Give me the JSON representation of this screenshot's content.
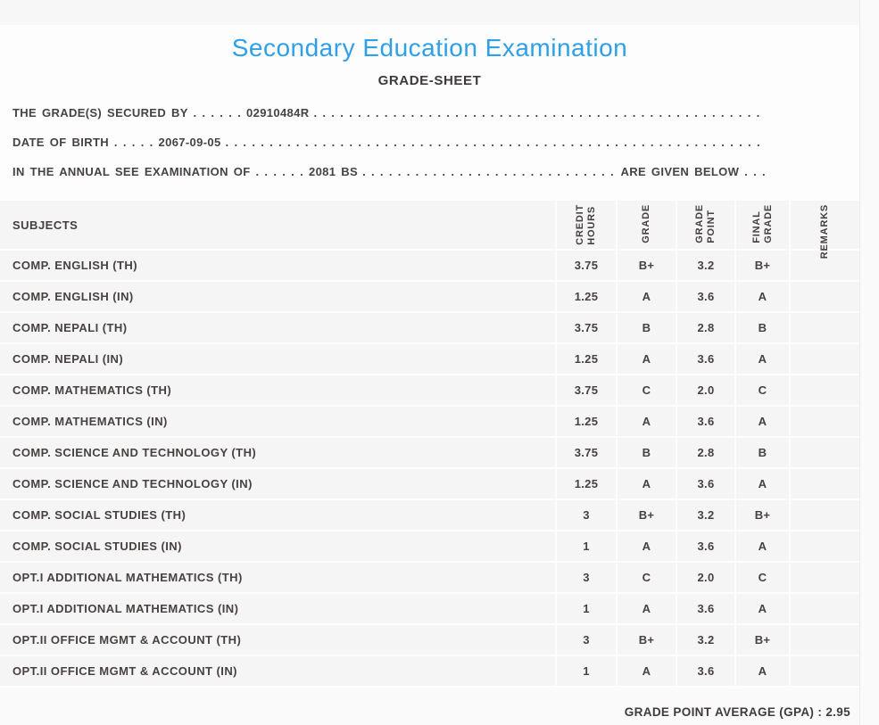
{
  "page": {
    "title": "Secondary Education Examination",
    "subtitle": "GRADE-SHEET"
  },
  "leader_dots": ". . . . . . . . . . . . . . . . . . . . . . . . . . . . . . . . . . . . . . . . . . . . . . . . . . . . . . . . . . . . . . . . . . . . . . . . . . . . . . . .",
  "info_lines": {
    "secured_by": "THE GRADE(S) SECURED BY . . . . . . 02910484R",
    "date_of_birth": "DATE OF BIRTH . . . . . 2067-09-05",
    "examination_of": "IN THE ANNUAL SEE EXAMINATION OF . . . . . . 2081 BS",
    "examination_suffix": "ARE GIVEN BELOW . . ."
  },
  "table": {
    "headers": {
      "subjects": "SUBJECTS",
      "credit_hours": "CREDIT\nHOURS",
      "grade": "GRADE",
      "grade_point": "GRADE\nPOINT",
      "final_grade": "FINAL\nGRADE",
      "remarks": "REMARKS"
    },
    "rows": [
      {
        "subject": "COMP. ENGLISH (TH)",
        "credit": "3.75",
        "grade": "B+",
        "point": "3.2",
        "final": "B+",
        "remarks": ""
      },
      {
        "subject": "COMP. ENGLISH (IN)",
        "credit": "1.25",
        "grade": "A",
        "point": "3.6",
        "final": "A",
        "remarks": ""
      },
      {
        "subject": "COMP. NEPALI (TH)",
        "credit": "3.75",
        "grade": "B",
        "point": "2.8",
        "final": "B",
        "remarks": ""
      },
      {
        "subject": "COMP. NEPALI (IN)",
        "credit": "1.25",
        "grade": "A",
        "point": "3.6",
        "final": "A",
        "remarks": ""
      },
      {
        "subject": "COMP. MATHEMATICS (TH)",
        "credit": "3.75",
        "grade": "C",
        "point": "2.0",
        "final": "C",
        "remarks": ""
      },
      {
        "subject": "COMP. MATHEMATICS (IN)",
        "credit": "1.25",
        "grade": "A",
        "point": "3.6",
        "final": "A",
        "remarks": ""
      },
      {
        "subject": "COMP. SCIENCE AND TECHNOLOGY (TH)",
        "credit": "3.75",
        "grade": "B",
        "point": "2.8",
        "final": "B",
        "remarks": ""
      },
      {
        "subject": "COMP. SCIENCE AND TECHNOLOGY (IN)",
        "credit": "1.25",
        "grade": "A",
        "point": "3.6",
        "final": "A",
        "remarks": ""
      },
      {
        "subject": "COMP. SOCIAL STUDIES (TH)",
        "credit": "3",
        "grade": "B+",
        "point": "3.2",
        "final": "B+",
        "remarks": ""
      },
      {
        "subject": "COMP. SOCIAL STUDIES (IN)",
        "credit": "1",
        "grade": "A",
        "point": "3.6",
        "final": "A",
        "remarks": ""
      },
      {
        "subject": "OPT.I ADDITIONAL MATHEMATICS (TH)",
        "credit": "3",
        "grade": "C",
        "point": "2.0",
        "final": "C",
        "remarks": ""
      },
      {
        "subject": "OPT.I ADDITIONAL MATHEMATICS (IN)",
        "credit": "1",
        "grade": "A",
        "point": "3.6",
        "final": "A",
        "remarks": ""
      },
      {
        "subject": "OPT.II OFFICE MGMT & ACCOUNT (TH)",
        "credit": "3",
        "grade": "B+",
        "point": "3.2",
        "final": "B+",
        "remarks": ""
      },
      {
        "subject": "OPT.II OFFICE MGMT & ACCOUNT (IN)",
        "credit": "1",
        "grade": "A",
        "point": "3.6",
        "final": "A",
        "remarks": ""
      }
    ],
    "footer": {
      "gpa_label": "GRADE POINT AVERAGE (GPA) : 2.95"
    }
  }
}
